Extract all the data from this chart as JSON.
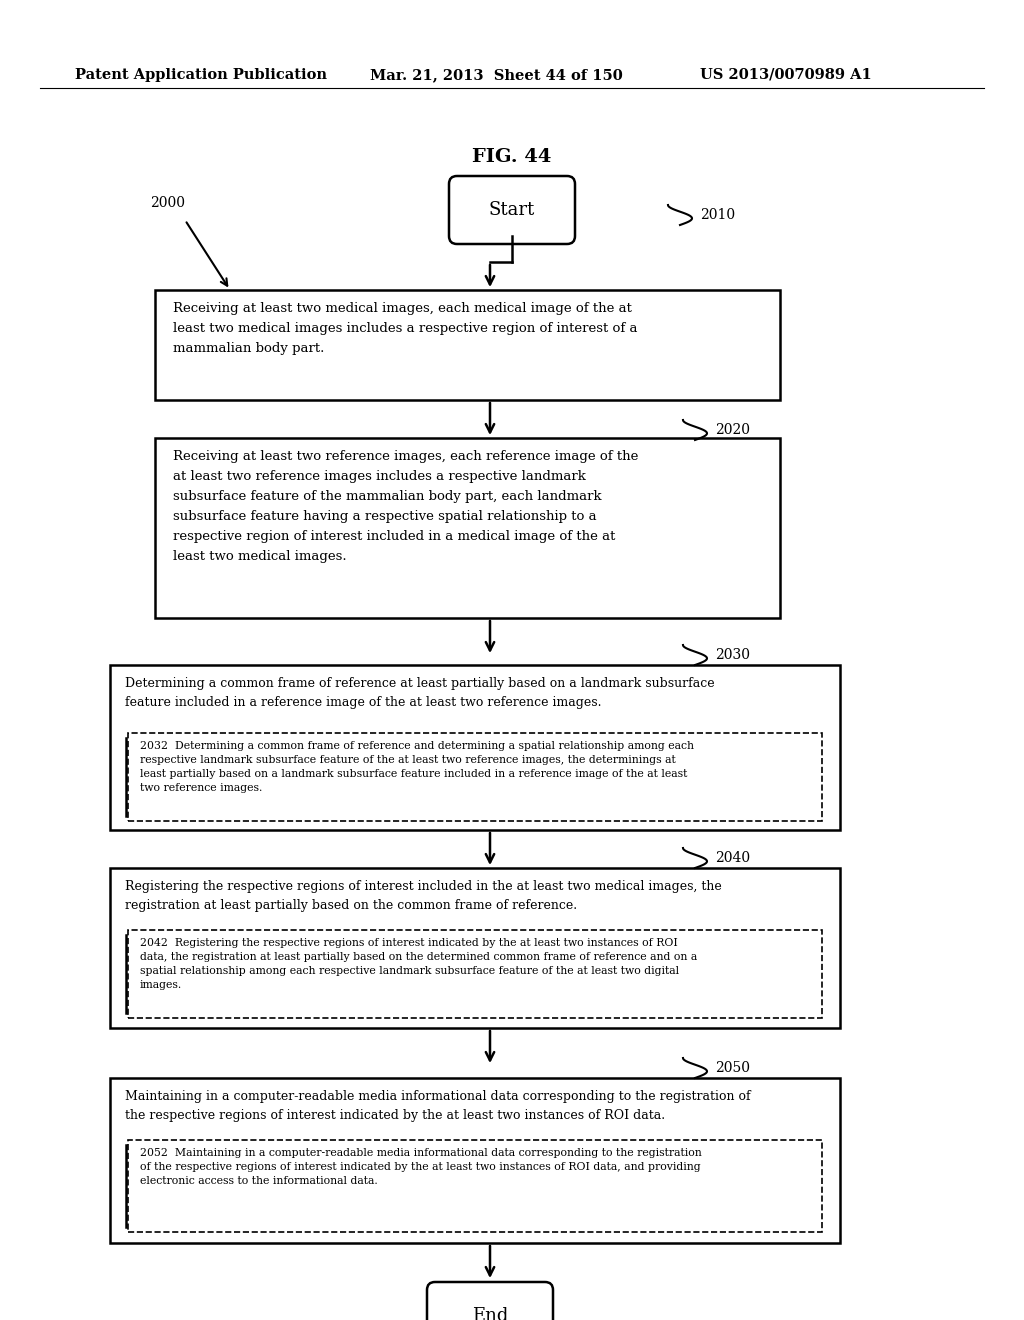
{
  "header_left": "Patent Application Publication",
  "header_mid": "Mar. 21, 2013  Sheet 44 of 150",
  "header_right": "US 2013/0070989 A1",
  "fig_title": "FIG. 44",
  "bg_color": "#ffffff",
  "label_2000": "2000",
  "label_2010": "2010",
  "label_2020": "2020",
  "label_2030": "2030",
  "label_2040": "2040",
  "label_2050": "2050",
  "text_box1": "Receiving at least two medical images, each medical image of the at\nleast two medical images includes a respective region of interest of a\nmammalian body part.",
  "text_box2": "Receiving at least two reference images, each reference image of the\nat least two reference images includes a respective landmark\nsubsurface feature of the mammalian body part, each landmark\nsubsurface feature having a respective spatial relationship to a\nrespective region of interest included in a medical image of the at\nleast two medical images.",
  "text_box3_top": "Determining a common frame of reference at least partially based on a landmark subsurface\nfeature included in a reference image of the at least two reference images.",
  "text_box3_inner": "2032  Determining a common frame of reference and determining a spatial relationship among each\nrespective landmark subsurface feature of the at least two reference images, the determinings at\nleast partially based on a landmark subsurface feature included in a reference image of the at least\ntwo reference images.",
  "text_box4_top": "Registering the respective regions of interest included in the at least two medical images, the\nregistration at least partially based on the common frame of reference.",
  "text_box4_inner": "2042  Registering the respective regions of interest indicated by the at least two instances of ROI\ndata, the registration at least partially based on the determined common frame of reference and on a\nspatial relationship among each respective landmark subsurface feature of the at least two digital\nimages.",
  "text_box5_top": "Maintaining in a computer-readable media informational data corresponding to the registration of\nthe respective regions of interest indicated by the at least two instances of ROI data.",
  "text_box5_inner": "2052  Maintaining in a computer-readable media informational data corresponding to the registration\nof the respective regions of interest indicated by the at least two instances of ROI data, and providing\nelectronic access to the informational data."
}
